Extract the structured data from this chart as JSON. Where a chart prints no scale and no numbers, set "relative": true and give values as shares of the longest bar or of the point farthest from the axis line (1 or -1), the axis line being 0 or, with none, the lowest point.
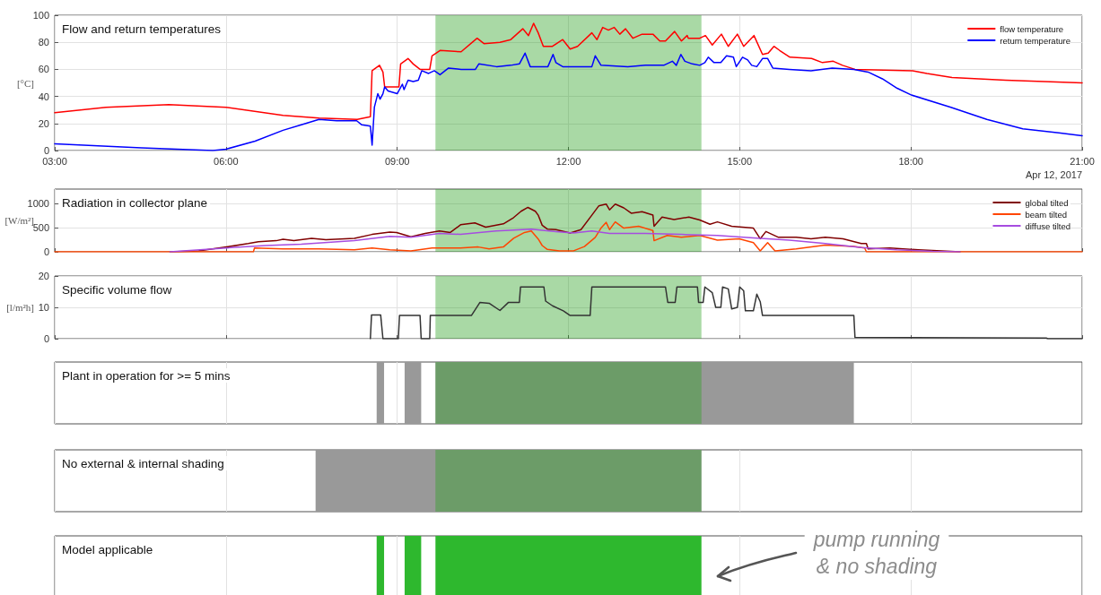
{
  "chart_data": [
    {
      "type": "line",
      "title": "Flow and return temperatures",
      "ylabel": "[°C]",
      "xlim": [
        3,
        21
      ],
      "xticks": [
        {
          "value": 3,
          "label": "03:00"
        },
        {
          "value": 6,
          "label": "06:00"
        },
        {
          "value": 9,
          "label": "09:00"
        },
        {
          "value": 12,
          "label": "12:00"
        },
        {
          "value": 15,
          "label": "15:00"
        },
        {
          "value": 18,
          "label": "18:00"
        },
        {
          "value": 21,
          "label": "21:00"
        }
      ],
      "ylim": [
        0,
        100
      ],
      "yticks": [
        0,
        20,
        40,
        60,
        80,
        100
      ],
      "grid": true,
      "legend": "top right",
      "series": [
        {
          "name": "flow temperature",
          "color": "#ff0000",
          "x": [
            3,
            3.9,
            5,
            6,
            7,
            7.63,
            8.3,
            8.53,
            8.56,
            8.69,
            8.75,
            8.78,
            9.03,
            9.06,
            9.19,
            9.28,
            9.4,
            9.57,
            9.61,
            9.75,
            10.12,
            10.4,
            10.52,
            10.8,
            10.99,
            11.2,
            11.3,
            11.39,
            11.47,
            11.56,
            11.72,
            11.9,
            12.03,
            12.16,
            12.41,
            12.5,
            12.6,
            12.7,
            12.8,
            12.9,
            13,
            13.13,
            13.29,
            13.48,
            13.6,
            13.7,
            13.86,
            13.98,
            14.08,
            14.1,
            14.3,
            14.4,
            14.52,
            14.68,
            14.8,
            14.96,
            15.07,
            15.25,
            15.4,
            15.5,
            15.6,
            15.7,
            15.88,
            16.26,
            16.45,
            16.64,
            16.8,
            17.02,
            18.03,
            18.28,
            18.72,
            19.66,
            21
          ],
          "values": [
            28,
            32,
            34,
            32,
            26,
            24,
            23,
            25,
            59,
            63,
            58,
            47,
            47,
            64,
            68,
            64,
            60,
            60,
            70,
            74,
            73,
            83,
            79,
            80,
            82,
            90,
            85,
            94,
            87,
            77,
            77,
            82,
            75,
            77,
            87,
            82,
            91,
            89,
            91,
            86,
            90,
            83,
            86,
            86,
            81,
            81,
            88,
            81,
            85,
            83,
            83,
            85,
            78,
            86,
            77,
            86,
            77,
            85,
            71,
            72,
            77,
            74,
            69,
            68,
            65,
            66,
            63,
            60,
            59,
            57,
            54,
            52,
            50
          ]
        },
        {
          "name": "return temperature",
          "color": "#0000ff",
          "x": [
            3,
            4.52,
            5.77,
            6,
            6.51,
            7,
            7.32,
            7.63,
            7.94,
            8.29,
            8.38,
            8.53,
            8.56,
            8.6,
            8.66,
            8.7,
            8.75,
            8.78,
            8.84,
            9,
            9.09,
            9.12,
            9.19,
            9.28,
            9.37,
            9.43,
            9.55,
            9.65,
            9.75,
            9.9,
            10.12,
            10.37,
            10.43,
            10.74,
            10.99,
            11.14,
            11.24,
            11.33,
            11.64,
            11.73,
            11.78,
            11.9,
            12.41,
            12.47,
            12.57,
            13.04,
            13.35,
            13.67,
            13.82,
            13.89,
            13.97,
            14.04,
            14.17,
            14.3,
            14.39,
            14.45,
            14.55,
            14.67,
            14.77,
            14.89,
            14.94,
            15.05,
            15.14,
            15.21,
            15.3,
            15.4,
            15.49,
            15.58,
            15.87,
            16.25,
            16.62,
            17,
            17.25,
            17.5,
            17.76,
            18.01,
            18.7,
            19.33,
            19.96,
            20.59,
            21
          ],
          "values": [
            5,
            2,
            0,
            1,
            7,
            15,
            19,
            23,
            22,
            22,
            19,
            18,
            4,
            32,
            42,
            38,
            42,
            47,
            44,
            42,
            49,
            45,
            52,
            51,
            52,
            59,
            57,
            59,
            56,
            61,
            60,
            60,
            64,
            62,
            63,
            64,
            72,
            62,
            62,
            71,
            65,
            62,
            62,
            70,
            63,
            62,
            63,
            63,
            66,
            63,
            71,
            66,
            64,
            63,
            65,
            69,
            65,
            65,
            70,
            69,
            62,
            69,
            67,
            63,
            62,
            68,
            68,
            61,
            60,
            59,
            61,
            60,
            58,
            53,
            46,
            41,
            32,
            23,
            16,
            13,
            11
          ]
        }
      ],
      "bands": [
        {
          "axis": "x",
          "from": 9.67,
          "to": 14.33,
          "color": "#a9d9a5"
        }
      ],
      "annotations": [
        "Apr 12, 2017"
      ]
    },
    {
      "type": "line",
      "title": "Radiation in collector plane",
      "ylabel": "[W/m²]",
      "xlim": [
        3,
        21
      ],
      "xticks": [
        {
          "value": 3,
          "label": null
        },
        {
          "value": 6,
          "label": null
        },
        {
          "value": 9,
          "label": null
        },
        {
          "value": 12,
          "label": null
        },
        {
          "value": 15,
          "label": null
        },
        {
          "value": 18,
          "label": null
        },
        {
          "value": 21,
          "label": null
        }
      ],
      "ylim": [
        0,
        1300
      ],
      "yticks": [
        0,
        500,
        1000
      ],
      "tick_labels": "y",
      "grid": true,
      "legend": "top right",
      "series": [
        {
          "name": "global tilted",
          "color": "#800000",
          "x": [
            5.02,
            5.52,
            6.01,
            6.39,
            6.57,
            6.88,
            7,
            7.19,
            7.5,
            7.75,
            8.25,
            8.56,
            8.87,
            8.99,
            9.24,
            9.49,
            9.74,
            9.93,
            10.11,
            10.36,
            10.55,
            10.86,
            11.04,
            11.17,
            11.29,
            11.42,
            11.47,
            11.54,
            11.63,
            11.78,
            12.03,
            12.22,
            12.41,
            12.53,
            12.66,
            12.72,
            12.82,
            12.97,
            13.1,
            13.29,
            13.48,
            13.5,
            13.64,
            13.85,
            14.11,
            14.3,
            14.48,
            14.61,
            14.86,
            15.24,
            15.36,
            15.46,
            15.68,
            15.99,
            16.25,
            16.5,
            16.81,
            17.13,
            17.22,
            17.25,
            17.63,
            18.13,
            18.86
          ],
          "values": [
            0,
            20,
            100,
            170,
            210,
            230,
            260,
            230,
            280,
            250,
            280,
            360,
            410,
            400,
            310,
            380,
            430,
            400,
            560,
            600,
            510,
            580,
            710,
            840,
            920,
            840,
            760,
            550,
            470,
            460,
            390,
            460,
            760,
            950,
            990,
            870,
            990,
            910,
            800,
            830,
            760,
            530,
            720,
            670,
            720,
            660,
            570,
            620,
            530,
            490,
            270,
            420,
            300,
            300,
            270,
            300,
            270,
            170,
            170,
            60,
            80,
            40,
            0
          ]
        },
        {
          "name": "beam tilted",
          "color": "#ff4500",
          "x": [
            3,
            6.48,
            6.5,
            7,
            7.63,
            8.25,
            8.56,
            8.87,
            9.24,
            9.61,
            10.11,
            10.42,
            10.61,
            10.86,
            11.04,
            11.23,
            11.35,
            11.48,
            11.54,
            11.63,
            11.84,
            12.09,
            12.28,
            12.47,
            12.57,
            12.66,
            12.72,
            12.82,
            12.97,
            13.23,
            13.48,
            13.5,
            13.73,
            13.98,
            14.3,
            14.61,
            14.99,
            15.24,
            15.36,
            15.49,
            15.62,
            15.99,
            16.5,
            17,
            17.19,
            17.22,
            21
          ],
          "values": [
            0,
            0,
            80,
            60,
            60,
            40,
            80,
            40,
            20,
            80,
            80,
            100,
            60,
            100,
            280,
            400,
            430,
            250,
            130,
            50,
            20,
            20,
            110,
            300,
            490,
            610,
            460,
            620,
            490,
            530,
            440,
            230,
            340,
            300,
            340,
            240,
            270,
            190,
            20,
            190,
            20,
            60,
            140,
            110,
            80,
            0,
            0
          ]
        },
        {
          "name": "diffuse tilted",
          "color": "#a64ce0",
          "x": [
            5.02,
            6.01,
            6.7,
            7.32,
            8.25,
            8.87,
            9.24,
            9.74,
            10.11,
            10.73,
            11.35,
            11.78,
            12.09,
            12.41,
            12.72,
            13.35,
            13.98,
            14.61,
            15.24,
            15.87,
            16.5,
            17.13,
            17.75,
            18.38,
            18.86
          ],
          "values": [
            0,
            80,
            130,
            160,
            230,
            320,
            300,
            380,
            360,
            430,
            470,
            420,
            390,
            430,
            380,
            380,
            360,
            340,
            290,
            240,
            170,
            90,
            40,
            10,
            0
          ]
        }
      ],
      "bands": [
        {
          "axis": "x",
          "from": 9.67,
          "to": 14.33,
          "color": "#a9d9a5"
        }
      ]
    },
    {
      "type": "line",
      "title": "Specific volume flow",
      "ylabel": "[l/m²h]",
      "xlim": [
        3,
        21
      ],
      "xticks": [
        {
          "value": 3,
          "label": null
        },
        {
          "value": 6,
          "label": null
        },
        {
          "value": 9,
          "label": null
        },
        {
          "value": 12,
          "label": null
        },
        {
          "value": 15,
          "label": null
        },
        {
          "value": 18,
          "label": null
        },
        {
          "value": 21,
          "label": null
        }
      ],
      "ylim": [
        0,
        20
      ],
      "yticks": [
        0,
        10,
        20
      ],
      "tick_labels": "y",
      "grid": true,
      "series": [
        {
          "color": "#333333",
          "x": [
            8.53,
            8.55,
            8.71,
            8.75,
            9.02,
            9.04,
            9.4,
            9.42,
            9.57,
            9.58,
            10.3,
            10.45,
            10.61,
            10.8,
            10.95,
            11.14,
            11.16,
            11.57,
            11.6,
            11.72,
            11.91,
            12.03,
            12.38,
            12.41,
            13.7,
            13.74,
            13.87,
            13.9,
            14.26,
            14.28,
            14.36,
            14.39,
            14.52,
            14.58,
            14.67,
            14.7,
            14.8,
            14.86,
            14.96,
            15,
            15.07,
            15.1,
            15.24,
            15.3,
            15.36,
            15.4,
            17,
            17.02,
            20.37,
            20.4,
            21
          ],
          "values": [
            0,
            7.6,
            7.6,
            0,
            0,
            7.4,
            7.4,
            0,
            0,
            7.4,
            7.4,
            11.6,
            11.3,
            9,
            11.6,
            11.6,
            16.5,
            16.5,
            12,
            10.5,
            8.9,
            7.4,
            7.4,
            16.5,
            16.5,
            11.6,
            11.6,
            16.5,
            16.5,
            11.6,
            11.6,
            16.5,
            14.7,
            10,
            10,
            16.5,
            15.9,
            9.5,
            10,
            16.5,
            15.3,
            8.9,
            8.9,
            14.2,
            11.8,
            7.4,
            7.4,
            0.4,
            0.2,
            0,
            0
          ]
        }
      ],
      "bands": [
        {
          "axis": "x",
          "from": 9.67,
          "to": 14.33,
          "color": "#a9d9a5"
        }
      ]
    },
    {
      "type": "area",
      "relative": true,
      "title": "Plant in operation for >= 5 mins",
      "xlim": [
        3,
        21
      ],
      "xticks": [
        {
          "value": 3,
          "label": null
        },
        {
          "value": 6,
          "label": null
        },
        {
          "value": 9,
          "label": null
        },
        {
          "value": 12,
          "label": null
        },
        {
          "value": 15,
          "label": null
        },
        {
          "value": 18,
          "label": null
        },
        {
          "value": 21,
          "label": null
        }
      ],
      "tick_labels": false,
      "grid": "x",
      "series": [
        {
          "color": "#999999",
          "x": [
            3,
            8.64,
            8.64,
            8.77,
            8.77,
            9.13,
            9.13,
            9.42,
            9.42,
            9.67,
            9.67,
            17,
            17,
            21
          ],
          "values": [
            0,
            0,
            1,
            1,
            0,
            0,
            1,
            1,
            0,
            0,
            1,
            1,
            0,
            0
          ]
        }
      ],
      "bands": [
        {
          "axis": "x",
          "from": 9.67,
          "to": 14.33,
          "color": "#a9d9a5"
        }
      ]
    },
    {
      "type": "area",
      "relative": true,
      "title": "No external & internal shading",
      "xlim": [
        3,
        21
      ],
      "xticks": [
        {
          "value": 3,
          "label": null
        },
        {
          "value": 6,
          "label": null
        },
        {
          "value": 9,
          "label": null
        },
        {
          "value": 12,
          "label": null
        },
        {
          "value": 15,
          "label": null
        },
        {
          "value": 18,
          "label": null
        },
        {
          "value": 21,
          "label": null
        }
      ],
      "tick_labels": false,
      "grid": "x",
      "series": [
        {
          "color": "#999999",
          "x": [
            3,
            7.57,
            7.57,
            14.33,
            14.33,
            21
          ],
          "values": [
            0,
            0,
            1,
            1,
            0,
            0
          ]
        }
      ],
      "bands": [
        {
          "axis": "x",
          "from": 9.67,
          "to": 14.33,
          "color": "#a9d9a5"
        }
      ]
    },
    {
      "type": "area",
      "relative": true,
      "title": "Model applicable",
      "xlim": [
        3,
        21
      ],
      "xticks": [
        {
          "value": 3,
          "label": null
        },
        {
          "value": 6,
          "label": null
        },
        {
          "value": 9,
          "label": null
        },
        {
          "value": 12,
          "label": null
        },
        {
          "value": 15,
          "label": null
        },
        {
          "value": 18,
          "label": null
        },
        {
          "value": 21,
          "label": null
        }
      ],
      "tick_labels": false,
      "grid": "x",
      "series": [
        {
          "color": "#2eb82e",
          "x": [
            3,
            8.64,
            8.64,
            8.77,
            8.77,
            9.13,
            9.13,
            9.42,
            9.42,
            9.67,
            9.67,
            14.33,
            14.33,
            21
          ],
          "values": [
            0,
            0,
            1,
            1,
            0,
            0,
            1,
            1,
            0,
            0,
            1,
            1,
            0,
            0
          ]
        }
      ],
      "annotations": [
        "pump running\n& no shading"
      ]
    }
  ]
}
